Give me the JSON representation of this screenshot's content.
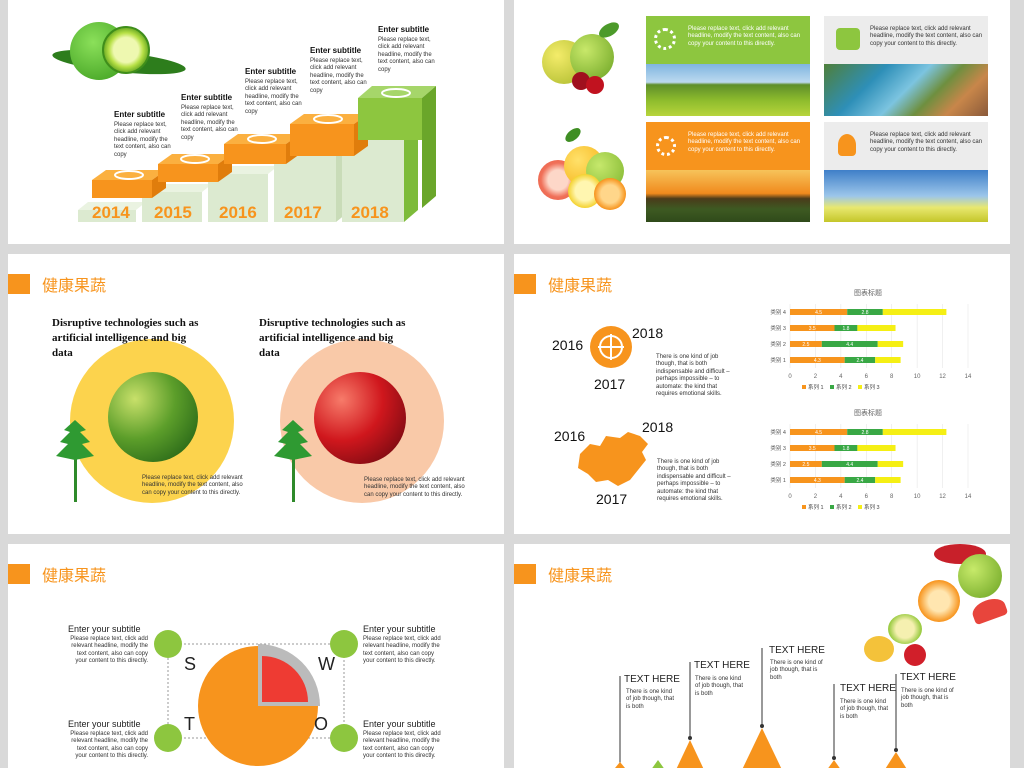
{
  "slide1": {
    "subtitles": [
      {
        "title": "Enter subtitle",
        "body": "Please replace text, click add relevant headline, modify the text content, also can copy"
      },
      {
        "title": "Enter subtitle",
        "body": "Please replace text, click add relevant headline, modify the text content, also can copy"
      },
      {
        "title": "Enter subtitle",
        "body": "Please replace text, click add relevant headline, modify the text content, also can copy"
      },
      {
        "title": "Enter subtitle",
        "body": "Please replace text, click add relevant headline, modify the text content, also can copy"
      },
      {
        "title": "Enter subtitle",
        "body": "Please replace text, click add relevant headline, modify the text content, also can copy"
      }
    ],
    "years": [
      "2014",
      "2015",
      "2016",
      "2017",
      "2018"
    ]
  },
  "slide2": {
    "boxes": [
      {
        "body": "Please replace text, click add relevant headline, modify the text content, also can copy your content to this directly."
      },
      {
        "body": "Please replace text, click add relevant headline, modify the text content, also can copy your content to this directly."
      },
      {
        "body": "Please replace text, click add relevant headline, modify the text content, also can copy your content to this directly."
      },
      {
        "body": "Please replace text, click add relevant headline, modify the text content, also can copy your content to this directly."
      }
    ]
  },
  "slide3": {
    "title": "健康果蔬",
    "headline": "Disruptive technologies such as artificial intelligence and big data",
    "body": "Please replace text, click add relevant headline, modify the text content, also can copy your content to this directly."
  },
  "slide4": {
    "title": "健康果蔬",
    "years": {
      "a": "2016",
      "b": "2018",
      "c": "2017"
    },
    "body": "There is one kind of job though, that is both indispensable and difficult – perhaps impossible – to automate: the kind that requires emotional skills.",
    "chart_title": "图表标题"
  },
  "chart_data": [
    {
      "type": "bar",
      "orientation": "horizontal",
      "stacked": true,
      "title": "图表标题",
      "categories": [
        "类别 1",
        "类别 2",
        "类别 3",
        "类别 4"
      ],
      "series": [
        {
          "name": "系列 1",
          "values": [
            4.3,
            2.5,
            3.5,
            4.5
          ]
        },
        {
          "name": "系列 2",
          "values": [
            2.4,
            4.4,
            1.8,
            2.8
          ]
        },
        {
          "name": "系列 3",
          "values": [
            2,
            2,
            3,
            5
          ]
        }
      ],
      "xlim": [
        0,
        14
      ],
      "xticks": [
        0,
        2,
        4,
        6,
        8,
        10,
        12,
        14
      ],
      "colors": [
        "#f7941d",
        "#39a845",
        "#f5ef14"
      ]
    },
    {
      "type": "bar",
      "orientation": "horizontal",
      "stacked": true,
      "title": "图表标题",
      "categories": [
        "类别 1",
        "类别 2",
        "类别 3",
        "类别 4"
      ],
      "series": [
        {
          "name": "系列 1",
          "values": [
            4.3,
            2.5,
            3.5,
            4.5
          ]
        },
        {
          "name": "系列 2",
          "values": [
            2.4,
            4.4,
            1.8,
            2.8
          ]
        },
        {
          "name": "系列 3",
          "values": [
            2,
            2,
            3,
            5
          ]
        }
      ],
      "xlim": [
        0,
        14
      ],
      "xticks": [
        0,
        2,
        4,
        6,
        8,
        10,
        12,
        14
      ],
      "colors": [
        "#f7941d",
        "#39a845",
        "#f5ef14"
      ]
    }
  ],
  "slide5": {
    "title": "健康果蔬",
    "items": [
      {
        "title": "Enter your subtitle",
        "body": "Please replace text, click add relevant headline, modify the text content, also can copy your content to this directly."
      },
      {
        "title": "Enter your subtitle",
        "body": "Please replace text, click add relevant headline, modify the text content, also can copy your content to this directly."
      },
      {
        "title": "Enter your subtitle",
        "body": "Please replace text, click add relevant headline, modify the text content, also can copy your content to this directly."
      },
      {
        "title": "Enter your subtitle",
        "body": "Please replace text, click add relevant headline, modify the text content, also can copy your content to this directly."
      }
    ],
    "letters": [
      "S",
      "W",
      "T",
      "O"
    ]
  },
  "slide6": {
    "title": "健康果蔬",
    "items": [
      {
        "label": "TEXT HERE",
        "body": "There is one kind of job though, that is both"
      },
      {
        "label": "TEXT HERE",
        "body": "There is one kind of job though, that is both"
      },
      {
        "label": "TEXT HERE",
        "body": "There is one kind of job though, that is both"
      },
      {
        "label": "TEXT HERE",
        "body": "There is one kind of job though, that is both"
      },
      {
        "label": "TEXT HERE",
        "body": "There is one kind of job though, that is both"
      }
    ]
  },
  "colors": {
    "orange": "#f7941d",
    "green": "#8dc63f",
    "lightgreen": "#d8ebc6",
    "peach": "#f9c9a8",
    "yellow": "#fcd34d",
    "red": "#ee3b33"
  }
}
